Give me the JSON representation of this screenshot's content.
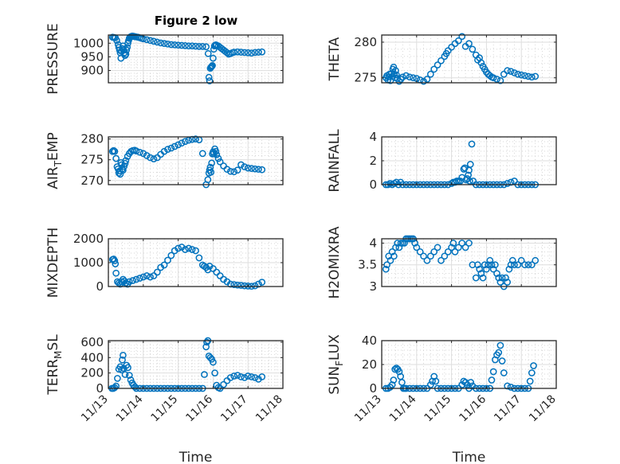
{
  "figure": {
    "title": "Figure 2 low",
    "marker_color": "#0072BD"
  },
  "chart_data": [
    {
      "type": "scatter",
      "name": "pressure",
      "ylabel": "PRESSURE",
      "ylim": [
        855,
        1030
      ],
      "yticks": [
        900,
        950,
        1000
      ],
      "xlim": [
        0,
        5
      ],
      "xticks": [
        0,
        1,
        2,
        3,
        4,
        5
      ],
      "xticklabels": [
        "11/13",
        "11/14",
        "11/15",
        "11/16",
        "11/17",
        "11/18"
      ],
      "show_xticklabels": false,
      "xlabel": "",
      "grid": true,
      "x": [
        0.12,
        0.16,
        0.2,
        0.24,
        0.28,
        0.3,
        0.32,
        0.34,
        0.36,
        0.38,
        0.4,
        0.42,
        0.44,
        0.46,
        0.48,
        0.5,
        0.52,
        0.54,
        0.56,
        0.58,
        0.6,
        0.62,
        0.64,
        0.66,
        0.68,
        0.7,
        0.72,
        0.74,
        0.76,
        0.8,
        0.85,
        0.9,
        0.95,
        1.0,
        1.1,
        1.2,
        1.3,
        1.4,
        1.5,
        1.6,
        1.7,
        1.8,
        1.9,
        2.0,
        2.1,
        2.2,
        2.3,
        2.4,
        2.5,
        2.6,
        2.7,
        2.8,
        2.86,
        2.88,
        2.9,
        2.92,
        2.94,
        2.96,
        2.98,
        3.0,
        3.02,
        3.04,
        3.06,
        3.08,
        3.1,
        3.15,
        3.2,
        3.25,
        3.3,
        3.35,
        3.4,
        3.45,
        3.5,
        3.55,
        3.6,
        3.7,
        3.8,
        3.9,
        4.0,
        4.1,
        4.2,
        4.3,
        4.4
      ],
      "values": [
        1022,
        1021,
        1020,
        1010,
        995,
        985,
        975,
        965,
        945,
        970,
        980,
        990,
        975,
        965,
        955,
        960,
        975,
        985,
        1000,
        1010,
        1018,
        1022,
        1024,
        1025,
        1026,
        1026,
        1025,
        1025,
        1024,
        1023,
        1022,
        1020,
        1018,
        1016,
        1013,
        1010,
        1007,
        1004,
        1001,
        999,
        997,
        995,
        994,
        993,
        992,
        991,
        990,
        990,
        989,
        988,
        988,
        987,
        962,
        875,
        862,
        908,
        912,
        915,
        918,
        945,
        978,
        990,
        993,
        994,
        993,
        990,
        985,
        980,
        975,
        970,
        965,
        960,
        962,
        965,
        967,
        968,
        967,
        966,
        965,
        964,
        966,
        967,
        968
      ]
    },
    {
      "type": "scatter",
      "name": "theta",
      "ylabel": "THETA",
      "ylim": [
        274.3,
        281
      ],
      "yticks": [
        275,
        280
      ],
      "xlim": [
        0,
        5
      ],
      "xticks": [
        0,
        1,
        2,
        3,
        4,
        5
      ],
      "xticklabels": [
        "11/13",
        "11/14",
        "11/15",
        "11/16",
        "11/17",
        "11/18"
      ],
      "show_xticklabels": false,
      "xlabel": "",
      "grid": true,
      "x": [
        0.12,
        0.15,
        0.18,
        0.2,
        0.22,
        0.25,
        0.28,
        0.3,
        0.32,
        0.34,
        0.36,
        0.38,
        0.4,
        0.42,
        0.45,
        0.5,
        0.55,
        0.6,
        0.7,
        0.8,
        0.9,
        1.0,
        1.1,
        1.2,
        1.3,
        1.4,
        1.5,
        1.6,
        1.7,
        1.8,
        1.85,
        1.9,
        2.0,
        2.1,
        2.2,
        2.3,
        2.4,
        2.5,
        2.6,
        2.7,
        2.75,
        2.8,
        2.85,
        2.9,
        2.95,
        3.0,
        3.05,
        3.1,
        3.15,
        3.2,
        3.3,
        3.4,
        3.5,
        3.6,
        3.7,
        3.8,
        3.9,
        4.0,
        4.1,
        4.2,
        4.3,
        4.4
      ],
      "values": [
        275,
        275.3,
        274.7,
        275.1,
        275.5,
        274.6,
        275.6,
        275.2,
        276.2,
        276.5,
        275.5,
        275,
        276,
        275.4,
        274.9,
        274.5,
        274.8,
        275.1,
        275.3,
        275.1,
        275,
        274.9,
        274.7,
        274.5,
        274.8,
        275.5,
        276.2,
        276.8,
        277.4,
        278,
        278.4,
        278.8,
        279.3,
        279.8,
        280.2,
        280.8,
        279.4,
        279.8,
        279,
        278.2,
        277.5,
        277.8,
        277.1,
        276.6,
        276.2,
        275.8,
        275.5,
        275.3,
        275.1,
        275,
        274.8,
        274.6,
        275.5,
        276,
        275.9,
        275.7,
        275.5,
        275.4,
        275.3,
        275.2,
        275.1,
        275.2
      ]
    },
    {
      "type": "scatter",
      "name": "air-temp",
      "ylabel_main": "AIR",
      "ylabel_sub": "T",
      "ylabel_rest": "EMP",
      "ylim": [
        269,
        280.5
      ],
      "yticks": [
        270,
        275,
        280
      ],
      "xlim": [
        0,
        5
      ],
      "xticks": [
        0,
        1,
        2,
        3,
        4,
        5
      ],
      "xticklabels": [
        "11/13",
        "11/14",
        "11/15",
        "11/16",
        "11/17",
        "11/18"
      ],
      "show_xticklabels": false,
      "xlabel": "",
      "grid": true,
      "x": [
        0.12,
        0.15,
        0.18,
        0.22,
        0.25,
        0.28,
        0.3,
        0.32,
        0.34,
        0.36,
        0.38,
        0.4,
        0.42,
        0.45,
        0.48,
        0.5,
        0.55,
        0.6,
        0.65,
        0.7,
        0.75,
        0.8,
        0.9,
        1.0,
        1.1,
        1.2,
        1.3,
        1.4,
        1.5,
        1.6,
        1.7,
        1.8,
        1.9,
        2.0,
        2.1,
        2.2,
        2.3,
        2.4,
        2.5,
        2.6,
        2.7,
        2.8,
        2.85,
        2.88,
        2.9,
        2.92,
        2.94,
        2.96,
        2.98,
        3.0,
        3.02,
        3.05,
        3.08,
        3.1,
        3.15,
        3.2,
        3.3,
        3.4,
        3.5,
        3.6,
        3.7,
        3.8,
        3.9,
        4.0,
        4.1,
        4.2,
        4.3,
        4.4
      ],
      "values": [
        277,
        277.2,
        277,
        275.3,
        273.3,
        272.8,
        271.8,
        272.3,
        271.5,
        274.3,
        273.8,
        272.8,
        272.5,
        273.4,
        274.1,
        274.8,
        275.8,
        276.5,
        277,
        277.2,
        277.3,
        277.1,
        276.8,
        276.5,
        276,
        275.5,
        275.2,
        275.5,
        276.3,
        277,
        277.5,
        277.8,
        278.2,
        278.6,
        279,
        279.4,
        279.7,
        279.9,
        280,
        279.8,
        276.5,
        269,
        270.2,
        271.8,
        272.5,
        273.2,
        272,
        274.2,
        276.4,
        276.9,
        276.5,
        277.6,
        277,
        276.2,
        275.3,
        274.5,
        273.5,
        272.7,
        272.2,
        272.1,
        272.5,
        273.8,
        273.3,
        273,
        272.9,
        272.8,
        272.7,
        272.6
      ]
    },
    {
      "type": "scatter",
      "name": "rainfall",
      "ylabel": "RAINFALL",
      "ylim": [
        0,
        4
      ],
      "yticks": [
        0,
        2,
        4
      ],
      "xlim": [
        0,
        5
      ],
      "xticks": [
        0,
        1,
        2,
        3,
        4,
        5
      ],
      "xticklabels": [
        "11/13",
        "11/14",
        "11/15",
        "11/16",
        "11/17",
        "11/18"
      ],
      "show_xticklabels": false,
      "xlabel": "",
      "grid": true,
      "x": [
        0.12,
        0.18,
        0.24,
        0.3,
        0.36,
        0.42,
        0.48,
        0.54,
        0.6,
        0.7,
        0.8,
        0.9,
        1.0,
        1.1,
        1.2,
        1.3,
        1.4,
        1.5,
        1.6,
        1.7,
        1.8,
        1.9,
        2.0,
        2.05,
        2.1,
        2.15,
        2.2,
        2.25,
        2.3,
        2.35,
        2.38,
        2.42,
        2.45,
        2.48,
        2.5,
        2.52,
        2.54,
        2.58,
        2.62,
        2.7,
        2.8,
        2.9,
        3.0,
        3.1,
        3.2,
        3.3,
        3.4,
        3.5,
        3.6,
        3.7,
        3.8,
        3.9,
        4.0,
        4.1,
        4.2,
        4.3,
        4.4
      ],
      "values": [
        0,
        0,
        0.1,
        0,
        0.1,
        0.2,
        0,
        0.2,
        0,
        0,
        0,
        0,
        0,
        0,
        0,
        0,
        0,
        0,
        0,
        0,
        0,
        0,
        0.1,
        0.2,
        0.2,
        0.3,
        0.3,
        0.3,
        0.6,
        1.3,
        1.4,
        0.4,
        0.5,
        0.8,
        1.2,
        0.3,
        1.7,
        3.4,
        0.3,
        0,
        0,
        0,
        0,
        0,
        0,
        0,
        0,
        0,
        0.1,
        0.2,
        0.3,
        0,
        0,
        0,
        0,
        0,
        0
      ]
    },
    {
      "type": "scatter",
      "name": "mixdepth",
      "ylabel": "MIXDEPTH",
      "ylim": [
        0,
        2000
      ],
      "yticks": [
        0,
        1000,
        2000
      ],
      "xlim": [
        0,
        5
      ],
      "xticks": [
        0,
        1,
        2,
        3,
        4,
        5
      ],
      "xticklabels": [
        "11/13",
        "11/14",
        "11/15",
        "11/16",
        "11/17",
        "11/18"
      ],
      "show_xticklabels": false,
      "xlabel": "",
      "grid": true,
      "x": [
        0.12,
        0.15,
        0.18,
        0.2,
        0.22,
        0.26,
        0.3,
        0.34,
        0.38,
        0.42,
        0.46,
        0.5,
        0.55,
        0.6,
        0.7,
        0.8,
        0.9,
        1.0,
        1.1,
        1.2,
        1.3,
        1.4,
        1.5,
        1.6,
        1.7,
        1.8,
        1.9,
        2.0,
        2.1,
        2.2,
        2.3,
        2.4,
        2.5,
        2.6,
        2.7,
        2.75,
        2.8,
        2.85,
        2.9,
        3.0,
        3.1,
        3.2,
        3.3,
        3.4,
        3.5,
        3.6,
        3.7,
        3.8,
        3.9,
        4.0,
        4.1,
        4.2,
        4.3,
        4.4
      ],
      "values": [
        1130,
        1150,
        1080,
        950,
        560,
        200,
        150,
        100,
        200,
        300,
        230,
        150,
        100,
        200,
        250,
        300,
        350,
        400,
        450,
        400,
        450,
        600,
        800,
        900,
        1100,
        1300,
        1500,
        1600,
        1650,
        1550,
        1600,
        1550,
        1500,
        1200,
        900,
        850,
        800,
        700,
        850,
        750,
        600,
        450,
        300,
        200,
        100,
        80,
        60,
        50,
        30,
        20,
        10,
        30,
        100,
        180
      ]
    },
    {
      "type": "scatter",
      "name": "h2o-mixing-ratio",
      "ylabel": "H2OMIXRA",
      "ylim": [
        3,
        4.1
      ],
      "yticks": [
        3,
        3.5,
        4
      ],
      "xlim": [
        0,
        5
      ],
      "xticks": [
        0,
        1,
        2,
        3,
        4,
        5
      ],
      "xticklabels": [
        "11/13",
        "11/14",
        "11/15",
        "11/16",
        "11/17",
        "11/18"
      ],
      "show_xticklabels": false,
      "xlabel": "",
      "grid": true,
      "x": [
        0.12,
        0.15,
        0.2,
        0.25,
        0.3,
        0.35,
        0.4,
        0.45,
        0.5,
        0.55,
        0.6,
        0.65,
        0.7,
        0.75,
        0.8,
        0.85,
        0.9,
        0.95,
        1.0,
        1.1,
        1.2,
        1.3,
        1.4,
        1.5,
        1.6,
        1.7,
        1.8,
        1.9,
        2.0,
        2.05,
        2.1,
        2.2,
        2.3,
        2.4,
        2.5,
        2.6,
        2.7,
        2.75,
        2.8,
        2.85,
        2.9,
        2.95,
        3.0,
        3.05,
        3.1,
        3.15,
        3.2,
        3.25,
        3.3,
        3.35,
        3.4,
        3.45,
        3.5,
        3.55,
        3.6,
        3.65,
        3.7,
        3.75,
        3.8,
        3.9,
        4.0,
        4.1,
        4.2,
        4.3,
        4.4
      ],
      "values": [
        3.4,
        3.5,
        3.7,
        3.6,
        3.8,
        3.7,
        3.9,
        4.0,
        3.9,
        4.0,
        4.0,
        4.0,
        4.1,
        4.1,
        4.1,
        4.1,
        4.1,
        4.0,
        3.9,
        3.8,
        3.7,
        3.6,
        3.7,
        3.8,
        3.9,
        3.6,
        3.7,
        3.8,
        3.9,
        4.0,
        3.8,
        3.9,
        4.0,
        3.9,
        4.0,
        3.5,
        3.2,
        3.5,
        3.4,
        3.3,
        3.2,
        3.5,
        3.4,
        3.5,
        3.6,
        3.5,
        3.4,
        3.5,
        3.3,
        3.2,
        3.1,
        3.2,
        3.0,
        3.2,
        3.1,
        3.4,
        3.5,
        3.6,
        3.5,
        3.5,
        3.6,
        3.5,
        3.5,
        3.5,
        3.6
      ]
    },
    {
      "type": "scatter",
      "name": "terr-msl",
      "ylabel_main": "TERR",
      "ylabel_sub": "M",
      "ylabel_rest": "SL",
      "ylim": [
        0,
        620
      ],
      "yticks": [
        0,
        200,
        400,
        600
      ],
      "xlim": [
        0,
        5
      ],
      "xticks": [
        0,
        1,
        2,
        3,
        4,
        5
      ],
      "xticklabels": [
        "11/13",
        "11/14",
        "11/15",
        "11/16",
        "11/17",
        "11/18"
      ],
      "show_xticklabels": true,
      "xlabel": "Time",
      "grid": true,
      "x": [
        0.1,
        0.14,
        0.18,
        0.22,
        0.26,
        0.3,
        0.34,
        0.38,
        0.4,
        0.42,
        0.44,
        0.48,
        0.52,
        0.56,
        0.6,
        0.64,
        0.68,
        0.72,
        0.76,
        0.8,
        0.9,
        1.0,
        1.1,
        1.2,
        1.3,
        1.4,
        1.5,
        1.6,
        1.7,
        1.8,
        1.9,
        2.0,
        2.1,
        2.2,
        2.3,
        2.4,
        2.5,
        2.6,
        2.7,
        2.75,
        2.8,
        2.82,
        2.85,
        2.88,
        2.92,
        2.96,
        3.0,
        3.05,
        3.1,
        3.15,
        3.2,
        3.3,
        3.4,
        3.5,
        3.6,
        3.7,
        3.8,
        3.9,
        4.0,
        4.1,
        4.2,
        4.3,
        4.4
      ],
      "values": [
        0,
        0,
        10,
        30,
        130,
        250,
        280,
        240,
        370,
        430,
        260,
        180,
        300,
        270,
        170,
        110,
        70,
        40,
        20,
        0,
        0,
        0,
        0,
        0,
        0,
        0,
        0,
        0,
        0,
        0,
        0,
        0,
        0,
        0,
        0,
        0,
        0,
        0,
        0,
        180,
        540,
        600,
        620,
        420,
        400,
        380,
        340,
        200,
        40,
        10,
        0,
        50,
        100,
        140,
        160,
        170,
        150,
        140,
        160,
        150,
        140,
        120,
        150
      ]
    },
    {
      "type": "scatter",
      "name": "sun-flux",
      "ylabel_main": "SUN",
      "ylabel_sub": "F",
      "ylabel_rest": "LUX",
      "ylim": [
        0,
        40
      ],
      "yticks": [
        0,
        20,
        40
      ],
      "xlim": [
        0,
        5
      ],
      "xticks": [
        0,
        1,
        2,
        3,
        4,
        5
      ],
      "xticklabels": [
        "11/13",
        "11/14",
        "11/15",
        "11/16",
        "11/17",
        "11/18"
      ],
      "show_xticklabels": true,
      "xlabel": "Time",
      "grid": true,
      "x": [
        0.12,
        0.18,
        0.24,
        0.3,
        0.34,
        0.38,
        0.42,
        0.46,
        0.5,
        0.54,
        0.58,
        0.62,
        0.66,
        0.7,
        0.8,
        0.9,
        1.0,
        1.1,
        1.2,
        1.3,
        1.4,
        1.45,
        1.5,
        1.55,
        1.6,
        1.7,
        1.8,
        1.9,
        2.0,
        2.1,
        2.2,
        2.3,
        2.35,
        2.4,
        2.45,
        2.5,
        2.55,
        2.6,
        2.7,
        2.8,
        2.9,
        3.0,
        3.1,
        3.15,
        3.2,
        3.25,
        3.3,
        3.35,
        3.4,
        3.45,
        3.5,
        3.6,
        3.7,
        3.8,
        3.9,
        4.0,
        4.1,
        4.2,
        4.25,
        4.3,
        4.35
      ],
      "values": [
        0,
        0,
        1,
        3,
        7,
        16,
        17,
        16,
        14,
        10,
        5,
        0,
        0,
        0,
        0,
        0,
        0,
        0,
        0,
        0,
        3,
        6,
        10,
        6,
        0,
        0,
        0,
        0,
        0,
        0,
        0,
        3,
        6,
        5,
        3,
        0,
        5,
        2,
        0,
        0,
        0,
        0,
        0,
        7,
        14,
        24,
        28,
        30,
        36,
        23,
        13,
        2,
        1,
        0,
        0,
        0,
        0,
        0,
        6,
        13,
        19
      ]
    }
  ]
}
